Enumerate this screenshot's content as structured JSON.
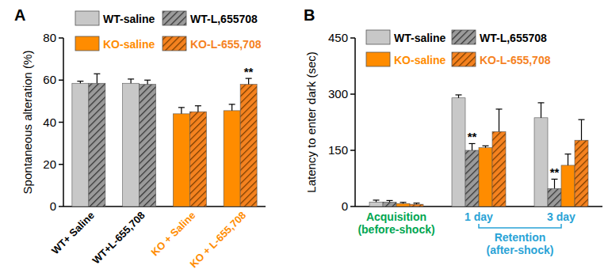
{
  "chart_data": [
    {
      "type": "bar",
      "title": "A",
      "y_label": "Spontaneous alteration (%)",
      "categories": [
        "WT+ Saline",
        "WT+L-655,708",
        "KO + Saline",
        "KO + L-655,708"
      ],
      "series": [
        {
          "name": "WT-saline",
          "color": "#c8c8c8",
          "values": [
            58.5,
            58.5,
            null,
            null
          ],
          "errors": [
            1,
            2,
            null,
            null
          ]
        },
        {
          "name": "WT-L,655708",
          "color": "#9a9a9a",
          "values": [
            58.5,
            58,
            null,
            null
          ],
          "errors": [
            4.5,
            2,
            null,
            null
          ]
        },
        {
          "name": "KO-saline",
          "color": "#ff8c00",
          "values": [
            null,
            null,
            44,
            45.5
          ],
          "errors": [
            null,
            null,
            3,
            3
          ]
        },
        {
          "name": "KO-L-655,708",
          "color": "#f5821f",
          "values": [
            null,
            null,
            45,
            58
          ],
          "errors": [
            null,
            null,
            2.8,
            2.8
          ],
          "significance": [
            null,
            null,
            null,
            "**"
          ]
        }
      ],
      "ylim": [
        0,
        80
      ],
      "yticks": [
        0,
        20,
        40,
        60,
        80
      ],
      "legend": "top",
      "grid": false
    },
    {
      "type": "bar",
      "title": "B",
      "y_label": "Latency to enter dark (sec)",
      "categories": [
        "Acquisition\n(before-shock)",
        "1 day",
        "3 day"
      ],
      "annotations": [
        "Retention\n(after-shock)"
      ],
      "series": [
        {
          "name": "WT-saline",
          "color": "#c8c8c8",
          "values": [
            12,
            290,
            237
          ],
          "errors": [
            5,
            8,
            40
          ]
        },
        {
          "name": "WT-L,655708",
          "color": "#9a9a9a",
          "values": [
            12,
            150,
            48
          ],
          "errors": [
            4,
            18,
            25
          ],
          "significance": [
            null,
            "**",
            "**"
          ]
        },
        {
          "name": "KO-saline",
          "color": "#ff8c00",
          "values": [
            8,
            157,
            110
          ],
          "errors": [
            3,
            5,
            30
          ]
        },
        {
          "name": "KO-L-655,708",
          "color": "#f5821f",
          "values": [
            6,
            200,
            177
          ],
          "errors": [
            3,
            60,
            55
          ]
        }
      ],
      "ylim": [
        0,
        450
      ],
      "yticks": [
        0,
        150,
        300,
        450
      ],
      "legend": "top",
      "grid": false
    }
  ]
}
